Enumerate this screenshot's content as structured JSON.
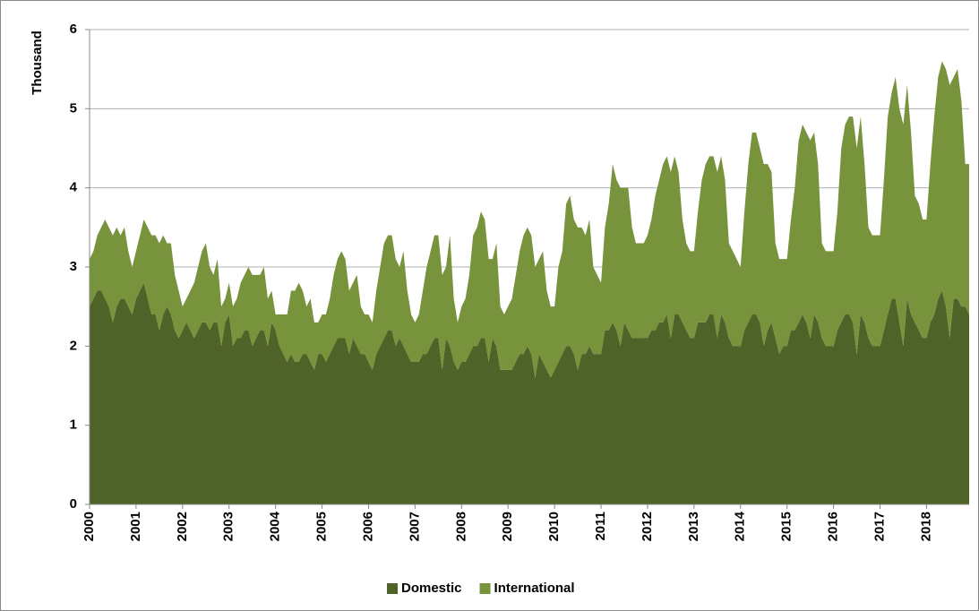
{
  "chart_data": {
    "type": "stacked_area",
    "y_label": "Thousand",
    "ylim": [
      0,
      6
    ],
    "yticks": [
      0,
      1,
      2,
      3,
      4,
      5,
      6
    ],
    "grid": true,
    "legend": "bottom",
    "categories": [
      "2000",
      null,
      null,
      null,
      null,
      null,
      null,
      null,
      null,
      null,
      null,
      null,
      "2001",
      null,
      null,
      null,
      null,
      null,
      null,
      null,
      null,
      null,
      null,
      null,
      "2002",
      null,
      null,
      null,
      null,
      null,
      null,
      null,
      null,
      null,
      null,
      null,
      "2003",
      null,
      null,
      null,
      null,
      null,
      null,
      null,
      null,
      null,
      null,
      null,
      "2004",
      null,
      null,
      null,
      null,
      null,
      null,
      null,
      null,
      null,
      null,
      null,
      "2005",
      null,
      null,
      null,
      null,
      null,
      null,
      null,
      null,
      null,
      null,
      null,
      "2006",
      null,
      null,
      null,
      null,
      null,
      null,
      null,
      null,
      null,
      null,
      null,
      "2007",
      null,
      null,
      null,
      null,
      null,
      null,
      null,
      null,
      null,
      null,
      null,
      "2008",
      null,
      null,
      null,
      null,
      null,
      null,
      null,
      null,
      null,
      null,
      null,
      "2009",
      null,
      null,
      null,
      null,
      null,
      null,
      null,
      null,
      null,
      null,
      null,
      "2010",
      null,
      null,
      null,
      null,
      null,
      null,
      null,
      null,
      null,
      null,
      null,
      "2011",
      null,
      null,
      null,
      null,
      null,
      null,
      null,
      null,
      null,
      null,
      null,
      "2012",
      null,
      null,
      null,
      null,
      null,
      null,
      null,
      null,
      null,
      null,
      null,
      "2013",
      null,
      null,
      null,
      null,
      null,
      null,
      null,
      null,
      null,
      null,
      null,
      "2014",
      null,
      null,
      null,
      null,
      null,
      null,
      null,
      null,
      null,
      null,
      null,
      "2015",
      null,
      null,
      null,
      null,
      null,
      null,
      null,
      null,
      null,
      null,
      null,
      "2016",
      null,
      null,
      null,
      null,
      null,
      null,
      null,
      null,
      null,
      null,
      null,
      "2017",
      null,
      null,
      null,
      null,
      null,
      null,
      null,
      null,
      null,
      null,
      null,
      "2018",
      null,
      null,
      null,
      null,
      null,
      null,
      null,
      null,
      null,
      null,
      null
    ],
    "series": [
      {
        "name": "Domestic",
        "color": "#4f6228",
        "values": [
          2.5,
          2.6,
          2.7,
          2.7,
          2.6,
          2.5,
          2.3,
          2.5,
          2.6,
          2.6,
          2.5,
          2.4,
          2.6,
          2.7,
          2.8,
          2.6,
          2.4,
          2.4,
          2.2,
          2.4,
          2.5,
          2.4,
          2.2,
          2.1,
          2.2,
          2.3,
          2.2,
          2.1,
          2.2,
          2.3,
          2.3,
          2.2,
          2.3,
          2.3,
          2.0,
          2.3,
          2.4,
          2.0,
          2.1,
          2.1,
          2.2,
          2.2,
          2.0,
          2.1,
          2.2,
          2.2,
          2.0,
          2.3,
          2.2,
          2.0,
          1.9,
          1.8,
          1.9,
          1.8,
          1.8,
          1.9,
          1.9,
          1.8,
          1.7,
          1.9,
          1.9,
          1.8,
          1.9,
          2.0,
          2.1,
          2.1,
          2.1,
          1.9,
          2.1,
          2.0,
          1.9,
          1.9,
          1.8,
          1.7,
          1.9,
          2.0,
          2.1,
          2.2,
          2.2,
          2.0,
          2.1,
          2.0,
          1.9,
          1.8,
          1.8,
          1.8,
          1.9,
          1.9,
          2.0,
          2.1,
          2.1,
          1.7,
          2.1,
          2.0,
          1.8,
          1.7,
          1.8,
          1.8,
          1.9,
          2.0,
          2.0,
          2.1,
          2.1,
          1.8,
          2.1,
          2.0,
          1.7,
          1.7,
          1.7,
          1.7,
          1.8,
          1.9,
          1.9,
          2.0,
          1.9,
          1.6,
          1.9,
          1.8,
          1.7,
          1.6,
          1.7,
          1.8,
          1.9,
          2.0,
          2.0,
          1.9,
          1.7,
          1.9,
          1.9,
          2.0,
          1.9,
          1.9,
          1.9,
          2.2,
          2.2,
          2.3,
          2.2,
          2.0,
          2.3,
          2.2,
          2.1,
          2.1,
          2.1,
          2.1,
          2.1,
          2.2,
          2.2,
          2.3,
          2.3,
          2.4,
          2.1,
          2.4,
          2.4,
          2.3,
          2.2,
          2.1,
          2.1,
          2.3,
          2.3,
          2.3,
          2.4,
          2.4,
          2.1,
          2.4,
          2.3,
          2.1,
          2.0,
          2.0,
          2.0,
          2.2,
          2.3,
          2.4,
          2.4,
          2.3,
          2.0,
          2.2,
          2.3,
          2.1,
          1.9,
          2.0,
          2.0,
          2.2,
          2.2,
          2.3,
          2.4,
          2.3,
          2.1,
          2.4,
          2.3,
          2.1,
          2.0,
          2.0,
          2.0,
          2.2,
          2.3,
          2.4,
          2.4,
          2.3,
          1.9,
          2.4,
          2.3,
          2.1,
          2.0,
          2.0,
          2.0,
          2.2,
          2.4,
          2.6,
          2.6,
          2.3,
          2.0,
          2.6,
          2.4,
          2.3,
          2.2,
          2.1,
          2.1,
          2.3,
          2.4,
          2.6,
          2.7,
          2.5,
          2.1,
          2.6,
          2.6,
          2.5,
          2.5,
          2.4
        ]
      },
      {
        "name": "International",
        "color": "#77933c",
        "values": [
          0.6,
          0.6,
          0.7,
          0.8,
          1.0,
          1.0,
          1.1,
          1.0,
          0.8,
          0.9,
          0.7,
          0.6,
          0.6,
          0.7,
          0.8,
          0.9,
          1.0,
          1.0,
          1.1,
          1.0,
          0.8,
          0.9,
          0.7,
          0.6,
          0.3,
          0.3,
          0.5,
          0.7,
          0.8,
          0.9,
          1.0,
          0.8,
          0.6,
          0.8,
          0.5,
          0.3,
          0.4,
          0.5,
          0.5,
          0.7,
          0.7,
          0.8,
          0.9,
          0.8,
          0.7,
          0.8,
          0.6,
          0.4,
          0.2,
          0.4,
          0.5,
          0.6,
          0.8,
          0.9,
          1.0,
          0.8,
          0.6,
          0.8,
          0.6,
          0.4,
          0.5,
          0.6,
          0.7,
          0.9,
          1.0,
          1.1,
          1.0,
          0.8,
          0.7,
          0.9,
          0.6,
          0.5,
          0.6,
          0.6,
          0.8,
          1.0,
          1.2,
          1.2,
          1.2,
          1.1,
          0.9,
          1.2,
          0.8,
          0.6,
          0.5,
          0.6,
          0.8,
          1.1,
          1.2,
          1.3,
          1.3,
          1.2,
          0.9,
          1.4,
          0.8,
          0.6,
          0.7,
          0.8,
          1.0,
          1.4,
          1.5,
          1.6,
          1.5,
          1.3,
          1.0,
          1.3,
          0.8,
          0.7,
          0.8,
          0.9,
          1.1,
          1.3,
          1.5,
          1.5,
          1.5,
          1.4,
          1.2,
          1.4,
          1.0,
          0.9,
          0.8,
          1.2,
          1.3,
          1.8,
          1.9,
          1.7,
          1.8,
          1.6,
          1.5,
          1.6,
          1.1,
          1.0,
          0.9,
          1.3,
          1.6,
          2.0,
          1.9,
          2.0,
          1.7,
          1.8,
          1.4,
          1.2,
          1.2,
          1.2,
          1.3,
          1.4,
          1.7,
          1.8,
          2.0,
          2.0,
          2.1,
          2.0,
          1.8,
          1.3,
          1.1,
          1.1,
          1.1,
          1.4,
          1.8,
          2.0,
          2.0,
          2.0,
          2.1,
          2.0,
          1.8,
          1.2,
          1.2,
          1.1,
          1.0,
          1.5,
          2.0,
          2.3,
          2.3,
          2.2,
          2.3,
          2.1,
          1.9,
          1.2,
          1.2,
          1.1,
          1.1,
          1.4,
          1.8,
          2.3,
          2.4,
          2.4,
          2.5,
          2.3,
          2.0,
          1.2,
          1.2,
          1.2,
          1.2,
          1.5,
          2.2,
          2.4,
          2.5,
          2.6,
          2.6,
          2.5,
          2.0,
          1.4,
          1.4,
          1.4,
          1.4,
          1.9,
          2.5,
          2.6,
          2.8,
          2.7,
          2.8,
          2.7,
          2.3,
          1.6,
          1.6,
          1.5,
          1.5,
          2.0,
          2.5,
          2.8,
          2.9,
          3.0,
          3.2,
          2.8,
          2.9,
          2.6,
          1.8,
          1.9
        ]
      }
    ]
  }
}
